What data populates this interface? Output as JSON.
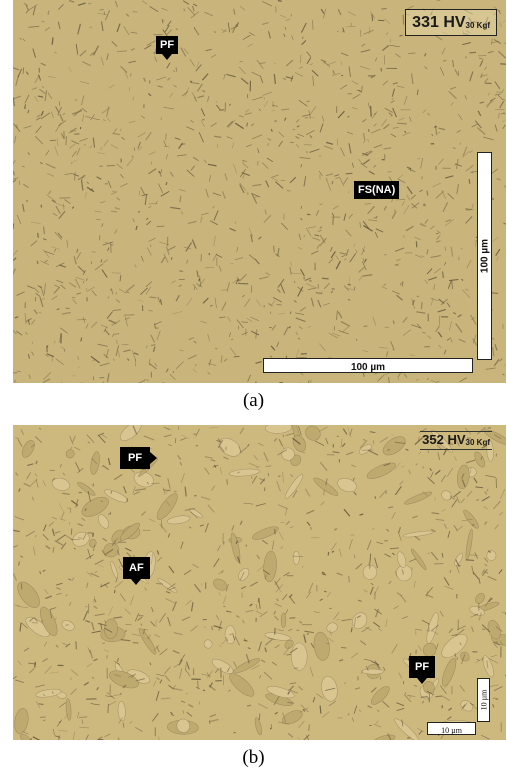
{
  "panels": [
    {
      "caption": "(a)",
      "hardness": {
        "value": "331 HV",
        "subscript": "30 Kgf"
      },
      "labels": [
        "PF",
        "FS(NA)"
      ],
      "scale_bars": {
        "horizontal": "100 µm",
        "vertical": "100 µm"
      }
    },
    {
      "caption": "(b)",
      "hardness": {
        "value": "352 HV",
        "subscript": "30 Kgf"
      },
      "labels": [
        "PF",
        "AF",
        "PF"
      ],
      "scale_bars": {
        "horizontal": "10 µm",
        "vertical": "10 µm"
      }
    }
  ],
  "colors": {
    "micrograph_base": "#cdb77a",
    "grain_dark": "#4e4630",
    "label_bg": "#000000"
  }
}
